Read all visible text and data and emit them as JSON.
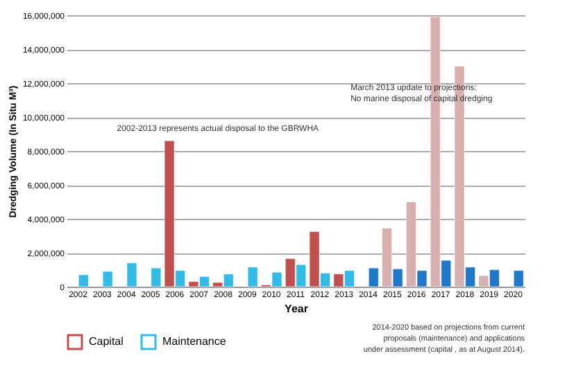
{
  "chart_data": {
    "type": "bar",
    "xlabel": "Year",
    "ylabel": "Dredging Volume (In Situ M³)",
    "categories": [
      "2002",
      "2003",
      "2004",
      "2005",
      "2006",
      "2007",
      "2008",
      "2009",
      "2010",
      "2011",
      "2012",
      "2013",
      "2014",
      "2015",
      "2016",
      "2017",
      "2018",
      "2019",
      "2020"
    ],
    "series": [
      {
        "name": "Capital",
        "color": "#c0504d",
        "colors": [
          "#c0504d",
          "#c0504d",
          "#c0504d",
          "#c0504d",
          "#c0504d",
          "#c0504d",
          "#c0504d",
          "#c0504d",
          "#c0504d",
          "#c0504d",
          "#c0504d",
          "#c0504d",
          "#c0504d",
          "#d9aeae",
          "#d9aeae",
          "#d9aeae",
          "#d9aeae",
          "#d9aeae",
          "#c0504d"
        ],
        "values": [
          null,
          null,
          null,
          null,
          8600000,
          300000,
          250000,
          null,
          100000,
          1650000,
          3250000,
          750000,
          null,
          3450000,
          5000000,
          15900000,
          13000000,
          650000,
          null
        ]
      },
      {
        "name": "Maintenance",
        "color": "#33bbe8",
        "colors": [
          "#33bbe8",
          "#33bbe8",
          "#33bbe8",
          "#33bbe8",
          "#33bbe8",
          "#33bbe8",
          "#33bbe8",
          "#33bbe8",
          "#33bbe8",
          "#33bbe8",
          "#33bbe8",
          "#33bbe8",
          "#1f78c8",
          "#1f78c8",
          "#1f78c8",
          "#1f78c8",
          "#1f78c8",
          "#1f78c8",
          "#1f78c8"
        ],
        "values": [
          700000,
          900000,
          1400000,
          1100000,
          950000,
          600000,
          750000,
          1150000,
          850000,
          1300000,
          800000,
          950000,
          1100000,
          1050000,
          950000,
          1550000,
          1150000,
          1000000,
          950000
        ]
      }
    ],
    "ylim": [
      0,
      16000000
    ],
    "yticks": [
      {
        "value": 0,
        "label": "0"
      },
      {
        "value": 2000000,
        "label": "2,000,000"
      },
      {
        "value": 4000000,
        "label": "4,000,000"
      },
      {
        "value": 6000000,
        "label": "6,000,000"
      },
      {
        "value": 8000000,
        "label": "8,000,000"
      },
      {
        "value": 10000000,
        "label": "10,000,000"
      },
      {
        "value": 12000000,
        "label": "12,000,000"
      },
      {
        "value": 14000000,
        "label": "14,000,000"
      },
      {
        "value": 16000000,
        "label": "16,000,000"
      }
    ],
    "grid": "y",
    "legend": "bottom",
    "annotations": [
      "2002-2013 represents actual disposal to the GBRWHA",
      "March 2013 update to projections:\nNo marine disposal of capital dredging",
      "2014-2020 based on projections from current\nproposals (maintenance) and applications\nunder assessment (capital , as at August 2014)."
    ]
  }
}
